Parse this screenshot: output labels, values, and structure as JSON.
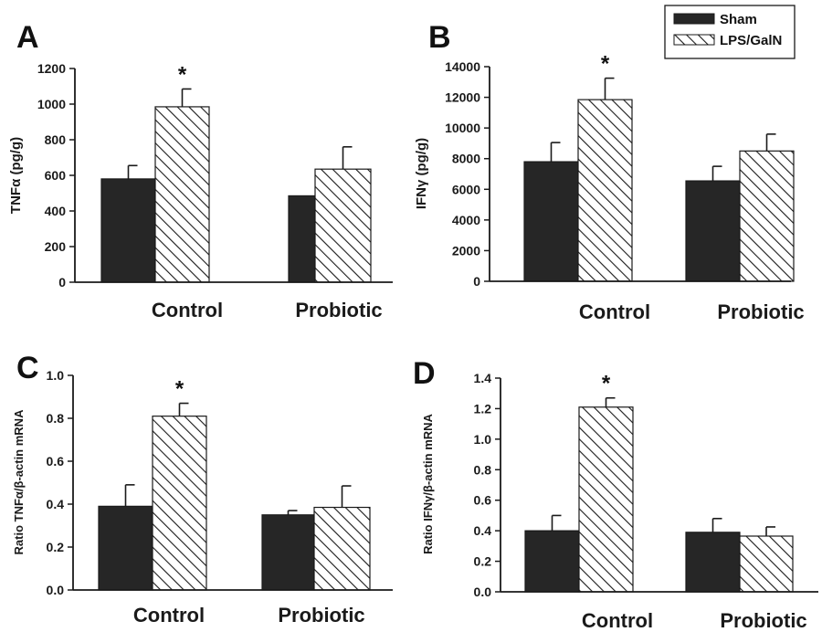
{
  "colors": {
    "sham": "#262626",
    "hatch": "#1a1a1a",
    "axis": "#1a1a1a"
  },
  "legend": {
    "items": [
      {
        "label": "Sham",
        "style": "solid"
      },
      {
        "label": "LPS/GalN",
        "style": "hatched"
      }
    ]
  },
  "chart_data": [
    {
      "type": "bar",
      "panel_label": "A",
      "ylabel": "TNFα (pg/g)",
      "categories": [
        "Control",
        "Probiotic"
      ],
      "ylim": [
        0,
        1200
      ],
      "ticks": [
        0,
        200,
        400,
        600,
        800,
        1000,
        1200
      ],
      "series": [
        {
          "name": "Sham",
          "values": [
            580,
            485
          ],
          "errors": [
            75,
            75
          ]
        },
        {
          "name": "LPS/GalN",
          "values": [
            985,
            635
          ],
          "errors": [
            100,
            125
          ]
        }
      ],
      "annotations": [
        {
          "text": "*",
          "category": "Control",
          "series": "LPS/GalN"
        }
      ]
    },
    {
      "type": "bar",
      "panel_label": "B",
      "ylabel": "IFNγ (pg/g)",
      "categories": [
        "Control",
        "Probiotic"
      ],
      "ylim": [
        0,
        14000
      ],
      "ticks": [
        0,
        2000,
        4000,
        6000,
        8000,
        10000,
        12000,
        14000
      ],
      "series": [
        {
          "name": "Sham",
          "values": [
            7800,
            6550
          ],
          "errors": [
            1250,
            950
          ]
        },
        {
          "name": "LPS/GalN",
          "values": [
            11850,
            8500
          ],
          "errors": [
            1400,
            1100
          ]
        }
      ],
      "annotations": [
        {
          "text": "*",
          "category": "Control",
          "series": "LPS/GalN"
        }
      ]
    },
    {
      "type": "bar",
      "panel_label": "C",
      "ylabel": "Ratio TNFα/β-actin mRNA",
      "categories": [
        "Control",
        "Probiotic"
      ],
      "ylim": [
        0,
        1.0
      ],
      "ticks": [
        "0.0",
        "0.2",
        "0.4",
        "0.6",
        "0.8",
        "1.0"
      ],
      "series": [
        {
          "name": "Sham",
          "values": [
            0.39,
            0.35
          ],
          "errors": [
            0.1,
            0.02
          ]
        },
        {
          "name": "LPS/GalN",
          "values": [
            0.81,
            0.385
          ],
          "errors": [
            0.06,
            0.1
          ]
        }
      ],
      "annotations": [
        {
          "text": "*",
          "category": "Control",
          "series": "LPS/GalN"
        }
      ]
    },
    {
      "type": "bar",
      "panel_label": "D",
      "ylabel": "Ratio IFNγ/β-actin mRNA",
      "categories": [
        "Control",
        "Probiotic"
      ],
      "ylim": [
        0,
        1.4
      ],
      "ticks": [
        "0.0",
        "0.2",
        "0.4",
        "0.6",
        "0.8",
        "1.0",
        "1.2",
        "1.4"
      ],
      "series": [
        {
          "name": "Sham",
          "values": [
            0.4,
            0.39
          ],
          "errors": [
            0.1,
            0.09
          ]
        },
        {
          "name": "LPS/GalN",
          "values": [
            1.21,
            0.365
          ],
          "errors": [
            0.06,
            0.06
          ]
        }
      ],
      "annotations": [
        {
          "text": "*",
          "category": "Control",
          "series": "LPS/GalN"
        }
      ]
    }
  ]
}
